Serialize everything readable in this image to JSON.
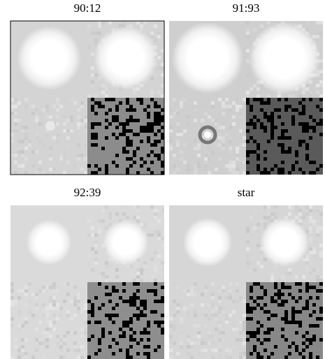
{
  "panels": [
    {
      "title": "90:12"
    },
    {
      "title": "91:93"
    },
    {
      "title": "92:39"
    },
    {
      "title": "star"
    }
  ]
}
